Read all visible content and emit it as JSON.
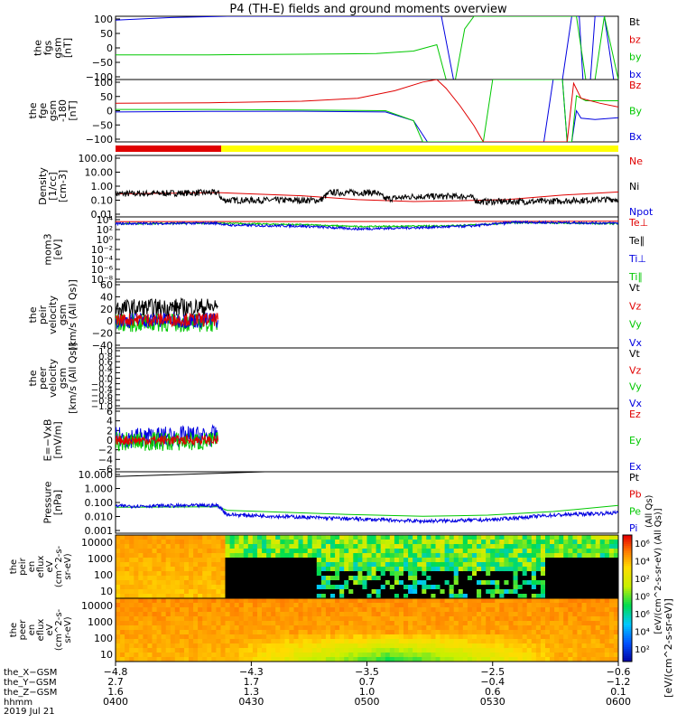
{
  "title": "P4 (TH-E) fields and ground moments overview",
  "colors": {
    "black": "#000000",
    "red": "#e00000",
    "green": "#00c800",
    "blue": "#0000e0",
    "yellow": "#ffff00"
  },
  "chart_data": [
    {
      "type": "line",
      "panel": "fgs",
      "ylabel": [
        "the",
        "fgs",
        "gsm",
        "[nT]"
      ],
      "yticks": [
        "100",
        "50",
        "0",
        "−50",
        "−100"
      ],
      "ylim": [
        -100,
        100
      ],
      "legend": [
        {
          "label": "Bt",
          "color": "#000000"
        },
        {
          "label": "bz",
          "color": "#e00000"
        },
        {
          "label": "by",
          "color": "#00c800"
        },
        {
          "label": "bx",
          "color": "#0000e0"
        }
      ],
      "series": [
        {
          "name": "bx",
          "color": "#0000e0",
          "points": [
            [
              0,
              88
            ],
            [
              60,
              96
            ],
            [
              120,
              100
            ],
            [
              350,
              100
            ],
            [
              363,
              -100
            ],
            [
              480,
              -100
            ],
            [
              490,
              100
            ],
            [
              498,
              100
            ],
            [
              502,
              -100
            ],
            [
              510,
              -100
            ],
            [
              515,
              100
            ],
            [
              525,
              100
            ],
            [
              535,
              -100
            ]
          ]
        },
        {
          "name": "by",
          "color": "#00c800",
          "points": [
            [
              0,
              -22
            ],
            [
              100,
              -22
            ],
            [
              200,
              -20
            ],
            [
              280,
              -18
            ],
            [
              320,
              -10
            ],
            [
              345,
              10
            ],
            [
              355,
              -100
            ],
            [
              365,
              -100
            ],
            [
              375,
              60
            ],
            [
              385,
              100
            ],
            [
              495,
              100
            ],
            [
              505,
              -100
            ],
            [
              515,
              -100
            ],
            [
              525,
              100
            ],
            [
              540,
              -100
            ]
          ]
        }
      ]
    },
    {
      "type": "line",
      "panel": "fge",
      "ylabel": [
        "the",
        "fge",
        "gsm",
        "-180",
        "[nT]"
      ],
      "yticks": [
        "100",
        "50",
        "0",
        "−50",
        "−100"
      ],
      "ylim": [
        -125,
        125
      ],
      "legend": [
        {
          "label": "Bz",
          "color": "#e00000"
        },
        {
          "label": "By",
          "color": "#00c800"
        },
        {
          "label": "Bx",
          "color": "#0000e0"
        }
      ],
      "series": [
        {
          "name": "Bx",
          "color": "#0000e0",
          "points": [
            [
              0,
              -5
            ],
            [
              100,
              -3
            ],
            [
              200,
              -2
            ],
            [
              290,
              -5
            ],
            [
              320,
              -40
            ],
            [
              335,
              -125
            ],
            [
              460,
              -125
            ],
            [
              470,
              125
            ],
            [
              480,
              125
            ],
            [
              485,
              -125
            ],
            [
              490,
              -125
            ],
            [
              495,
              0
            ],
            [
              500,
              -30
            ],
            [
              515,
              -35
            ],
            [
              540,
              -28
            ]
          ]
        },
        {
          "name": "By",
          "color": "#00c800",
          "points": [
            [
              0,
              5
            ],
            [
              100,
              5
            ],
            [
              200,
              3
            ],
            [
              290,
              0
            ],
            [
              320,
              -40
            ],
            [
              330,
              -125
            ],
            [
              395,
              -125
            ],
            [
              405,
              125
            ],
            [
              480,
              125
            ],
            [
              485,
              -125
            ],
            [
              490,
              -125
            ],
            [
              495,
              60
            ],
            [
              505,
              40
            ],
            [
              540,
              40
            ]
          ]
        },
        {
          "name": "Bz",
          "color": "#e00000",
          "points": [
            [
              0,
              30
            ],
            [
              100,
              32
            ],
            [
              200,
              38
            ],
            [
              260,
              50
            ],
            [
              300,
              80
            ],
            [
              330,
              115
            ],
            [
              345,
              125
            ],
            [
              355,
              90
            ],
            [
              370,
              20
            ],
            [
              385,
              -60
            ],
            [
              395,
              -125
            ],
            [
              470,
              -125
            ],
            [
              485,
              -125
            ],
            [
              492,
              110
            ],
            [
              500,
              50
            ],
            [
              520,
              30
            ],
            [
              540,
              15
            ]
          ]
        }
      ]
    },
    {
      "type": "line",
      "panel": "density",
      "ylabel": [
        "Density",
        "[1/cc]",
        "[cm-3]"
      ],
      "yticks": [
        "100.00",
        "10.00",
        "1.00",
        "0.10",
        "0.01"
      ],
      "ylim": [
        -2.4,
        2.4
      ],
      "log": true,
      "legend": [
        {
          "label": "Ne",
          "color": "#e00000"
        },
        {
          "label": "Ni",
          "color": "#000000"
        },
        {
          "label": "Npot",
          "color": "#0000e0"
        }
      ],
      "series": [
        {
          "name": "Ne",
          "color": "#e00000",
          "points": [
            [
              0,
              -0.6
            ],
            [
              110,
              -0.5
            ],
            [
              200,
              -0.75
            ],
            [
              260,
              -1.05
            ],
            [
              320,
              -1.2
            ],
            [
              360,
              -1.15
            ],
            [
              420,
              -1.05
            ],
            [
              480,
              -0.7
            ],
            [
              540,
              -0.45
            ]
          ]
        },
        {
          "name": "Ni",
          "color": "#000000",
          "noise": 0.25,
          "points": [
            [
              0,
              -0.6
            ],
            [
              110,
              -0.5
            ],
            [
              115,
              -1.1
            ],
            [
              220,
              -1.1
            ],
            [
              230,
              -0.5
            ],
            [
              280,
              -0.5
            ],
            [
              290,
              -1.0
            ],
            [
              320,
              -0.8
            ],
            [
              380,
              -0.8
            ],
            [
              390,
              -1.2
            ],
            [
              460,
              -1.2
            ],
            [
              540,
              -1.0
            ]
          ]
        }
      ]
    },
    {
      "type": "line",
      "panel": "temperature",
      "ylabel": [
        "mom3",
        "[eV]"
      ],
      "yticks": [
        "10⁴",
        "10²",
        "10⁰",
        "10⁻²",
        "10⁻⁴",
        "10⁻⁶",
        "10⁻⁸"
      ],
      "ylim": [
        -9,
        4.5
      ],
      "log": true,
      "legend": [
        {
          "label": "Te⊥",
          "color": "#e00000"
        },
        {
          "label": "Te∥",
          "color": "#000000"
        },
        {
          "label": "Ti⊥",
          "color": "#0000e0"
        },
        {
          "label": "Ti∥",
          "color": "#00c800"
        }
      ],
      "series": [
        {
          "name": "Te⊥",
          "color": "#e00000",
          "points": [
            [
              0,
              3.5
            ],
            [
              540,
              3.6
            ]
          ]
        },
        {
          "name": "Ti∥",
          "color": "#00c800",
          "noise": 0.15,
          "points": [
            [
              0,
              3.1
            ],
            [
              110,
              3.2
            ],
            [
              200,
              2.9
            ],
            [
              260,
              2.5
            ],
            [
              330,
              2.6
            ],
            [
              380,
              2.8
            ],
            [
              430,
              3.3
            ],
            [
              540,
              3.1
            ]
          ]
        },
        {
          "name": "Ti⊥",
          "color": "#0000e0",
          "noise": 0.25,
          "points": [
            [
              0,
              3.1
            ],
            [
              110,
              3.2
            ],
            [
              120,
              2.8
            ],
            [
              200,
              2.6
            ],
            [
              260,
              2.0
            ],
            [
              330,
              2.3
            ],
            [
              380,
              2.6
            ],
            [
              430,
              3.4
            ],
            [
              540,
              3.2
            ]
          ]
        }
      ]
    },
    {
      "type": "line",
      "panel": "peir-velocity",
      "ylabel": [
        "the",
        "peir",
        "velocity",
        "gsm",
        "[km/s (All Qs)]"
      ],
      "yticks": [
        "60",
        "40",
        "20",
        "0",
        "−20",
        "−40"
      ],
      "ylim": [
        -40,
        60
      ],
      "legend": [
        {
          "label": "Vt",
          "color": "#000000"
        },
        {
          "label": "Vz",
          "color": "#e00000"
        },
        {
          "label": "Vy",
          "color": "#00c800"
        },
        {
          "label": "Vx",
          "color": "#0000e0"
        }
      ],
      "series": [
        {
          "name": "Vt",
          "color": "#000000",
          "noise": 14,
          "points": [
            [
              0,
              20
            ],
            [
              110,
              22
            ]
          ]
        },
        {
          "name": "Vy",
          "color": "#00c800",
          "noise": 14,
          "points": [
            [
              0,
              -2
            ],
            [
              110,
              -2
            ]
          ]
        },
        {
          "name": "Vx",
          "color": "#0000e0",
          "noise": 12,
          "points": [
            [
              0,
              2
            ],
            [
              110,
              2
            ]
          ]
        },
        {
          "name": "Vz",
          "color": "#e00000",
          "noise": 10,
          "points": [
            [
              0,
              3
            ],
            [
              110,
              3
            ]
          ]
        }
      ]
    },
    {
      "type": "line",
      "panel": "peer-velocity",
      "ylabel": [
        "the",
        "peer",
        "velocity",
        "gsm",
        "[km/s (All Qs)]"
      ],
      "yticks": [
        "1.0",
        "0.8",
        "0.6",
        "0.4",
        "0.2",
        "0.0",
        "−0.2",
        "−0.4",
        "−0.6",
        "−0.8",
        "−1.0"
      ],
      "ylim": [
        -1,
        1
      ],
      "legend": [
        {
          "label": "Vt",
          "color": "#000000"
        },
        {
          "label": "Vz",
          "color": "#e00000"
        },
        {
          "label": "Vy",
          "color": "#00c800"
        },
        {
          "label": "Vx",
          "color": "#0000e0"
        }
      ],
      "series": []
    },
    {
      "type": "line",
      "panel": "efield",
      "ylabel": [
        "E=−VxB",
        "[mV/m]"
      ],
      "yticks": [
        "6",
        "4",
        "2",
        "0",
        "−2",
        "−4",
        "−6"
      ],
      "ylim": [
        -6.5,
        6.5
      ],
      "legend": [
        {
          "label": "Ez",
          "color": "#e00000"
        },
        {
          "label": "Ey",
          "color": "#00c800"
        },
        {
          "label": "Ex",
          "color": "#0000e0"
        }
      ],
      "series": [
        {
          "name": "Ex",
          "color": "#0000e0",
          "noise": 2.2,
          "points": [
            [
              0,
              0.5
            ],
            [
              110,
              0.8
            ]
          ]
        },
        {
          "name": "Ey",
          "color": "#00c800",
          "noise": 2.0,
          "points": [
            [
              0,
              -0.3
            ],
            [
              110,
              -0.3
            ]
          ]
        },
        {
          "name": "Ez",
          "color": "#e00000",
          "noise": 1.0,
          "points": [
            [
              0,
              0
            ],
            [
              110,
              0
            ]
          ]
        }
      ]
    },
    {
      "type": "line",
      "panel": "pressure",
      "ylabel": [
        "Pressure",
        "[nPa]"
      ],
      "yticks": [
        "10.000",
        "1.000",
        "0.100",
        "0.010",
        "0.001"
      ],
      "ylim": [
        -3.5,
        1.6
      ],
      "log": true,
      "legend": [
        {
          "label": "Pt",
          "color": "#000000"
        },
        {
          "label": "Pb",
          "color": "#e00000"
        },
        {
          "label": "Pe",
          "color": "#00c800"
        },
        {
          "label": "Pi",
          "color": "#0000e0"
        }
      ],
      "extra_legend": "(All Qs)",
      "series": [
        {
          "name": "Pt",
          "color": "#000000",
          "points": [
            [
              0,
              1.2
            ],
            [
              100,
              1.45
            ],
            [
              200,
              1.7
            ]
          ]
        },
        {
          "name": "Pe",
          "color": "#00c800",
          "points": [
            [
              0,
              -1.35
            ],
            [
              110,
              -1.3
            ],
            [
              120,
              -1.6
            ],
            [
              250,
              -1.95
            ],
            [
              330,
              -2.1
            ],
            [
              400,
              -2.0
            ],
            [
              470,
              -1.7
            ],
            [
              540,
              -1.2
            ]
          ]
        },
        {
          "name": "Pi",
          "color": "#0000e0",
          "noise": 0.15,
          "points": [
            [
              0,
              -1.25
            ],
            [
              110,
              -1.2
            ],
            [
              120,
              -1.95
            ],
            [
              250,
              -2.3
            ],
            [
              330,
              -2.5
            ],
            [
              400,
              -2.4
            ],
            [
              470,
              -2.0
            ],
            [
              540,
              -1.8
            ]
          ]
        }
      ]
    },
    {
      "type": "heatmap",
      "panel": "peir-en-eflux",
      "ylabel": [
        "the",
        "peir",
        "en",
        "eflux",
        "eV",
        "(cm^2-s-",
        "sr-eV)"
      ],
      "yticks": [
        "10000",
        "1000",
        "100",
        "10"
      ]
    },
    {
      "type": "heatmap",
      "panel": "peer-en-eflux",
      "ylabel": [
        "the",
        "peer",
        "en",
        "eflux",
        "eV",
        "(cm^2-s-",
        "sr-eV)"
      ],
      "yticks": [
        "10000",
        "1000",
        "100",
        "10"
      ]
    }
  ],
  "colorbar": {
    "ticks": [
      "10⁶",
      "10⁴",
      "10²",
      "10⁰",
      "10⁶",
      "10⁴",
      "10²"
    ],
    "label": "[eV/(cm^2-s-sr-eV)]",
    "overlay_label": "[eV/(cm^2-s-sr-eV) (All Qs)]"
  },
  "xaxis": {
    "rows": [
      {
        "label": "the_X−GSM",
        "values": [
          "−4.8",
          "−4.3",
          "−3.5",
          "−2.5",
          "−0.6"
        ]
      },
      {
        "label": "the_Y−GSM",
        "values": [
          "2.7",
          "1.7",
          "0.7",
          "−0.4",
          "−1.2"
        ]
      },
      {
        "label": "the_Z−GSM",
        "values": [
          "1.6",
          "1.3",
          "1.0",
          "0.6",
          "0.1"
        ]
      },
      {
        "label": "hhmm",
        "values": [
          "0400",
          "0430",
          "0500",
          "0530",
          "0600"
        ]
      }
    ],
    "date": "2019 Jul 21"
  },
  "right_labels": {
    "Bt": "Bt"
  }
}
